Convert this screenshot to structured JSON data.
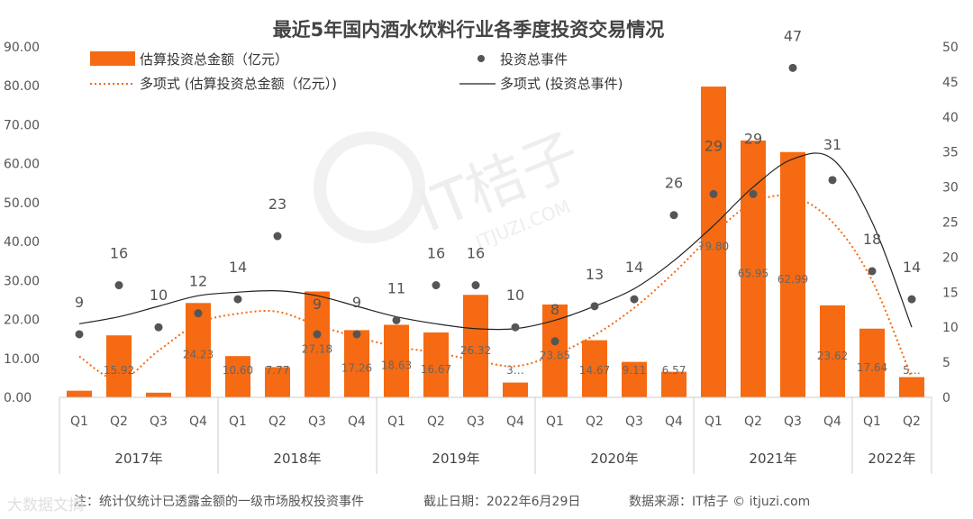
{
  "chart_data": {
    "type": "bar",
    "title": "最近5年国内酒水饮料行业各季度投资交易情况",
    "quarters": [
      "Q1",
      "Q2",
      "Q3",
      "Q4",
      "Q1",
      "Q2",
      "Q3",
      "Q4",
      "Q1",
      "Q2",
      "Q3",
      "Q4",
      "Q1",
      "Q2",
      "Q3",
      "Q4",
      "Q1",
      "Q2",
      "Q3",
      "Q4",
      "Q1",
      "Q2"
    ],
    "years": [
      "2017年",
      "2018年",
      "2019年",
      "2020年",
      "2021年",
      "2022年"
    ],
    "year_quarter_counts": [
      4,
      4,
      4,
      4,
      4,
      2
    ],
    "left_axis": {
      "ylim": [
        0,
        90
      ],
      "ticks": [
        "0.00",
        "10.00",
        "20.00",
        "30.00",
        "40.00",
        "50.00",
        "60.00",
        "70.00",
        "80.00",
        "90.00"
      ]
    },
    "right_axis": {
      "ylim": [
        0,
        50
      ],
      "ticks": [
        "0",
        "5",
        "10",
        "15",
        "20",
        "25",
        "30",
        "35",
        "40",
        "45",
        "50"
      ]
    },
    "series": [
      {
        "name": "估算投资总金额（亿元）",
        "kind": "bar",
        "color": "#F56A12",
        "values": [
          1.7,
          15.92,
          1.2,
          24.23,
          10.6,
          7.77,
          27.18,
          17.26,
          18.63,
          16.67,
          26.32,
          3.8,
          23.85,
          14.67,
          9.11,
          6.57,
          79.8,
          65.95,
          62.99,
          23.62,
          17.64,
          5.2
        ],
        "labels": [
          "",
          "15.92",
          "",
          "24.23",
          "10.60",
          "7.77",
          "27.18",
          "17.26",
          "18.63",
          "16.67",
          "26.32",
          "3…",
          "23.85",
          "14.67",
          "9.11",
          "6.57",
          "79.80",
          "65.95",
          "62.99",
          "23.62",
          "17.64",
          "5…"
        ]
      },
      {
        "name": "投资总事件",
        "kind": "scatter",
        "color": "#555555",
        "values": [
          9,
          16,
          10,
          12,
          14,
          23,
          9,
          9,
          11,
          16,
          16,
          10,
          8,
          13,
          14,
          26,
          29,
          29,
          47,
          31,
          18,
          14
        ],
        "labels": [
          "9",
          "16",
          "10",
          "12",
          "14",
          "23",
          "9",
          "9",
          "11",
          "16",
          "16",
          "10",
          "8",
          "13",
          "14",
          "26",
          "29",
          "29",
          "47",
          "31",
          "18",
          "14"
        ]
      },
      {
        "name": "多项式 (估算投资总金额（亿元）)",
        "kind": "trendline",
        "style": "dotted",
        "color": "#F56A12",
        "values": [
          10.5,
          4.5,
          12,
          19,
          21.5,
          22,
          18.5,
          15.5,
          13,
          11.5,
          9.5,
          8,
          11,
          16,
          23,
          32,
          42,
          50,
          51.5,
          45,
          30,
          5
        ]
      },
      {
        "name": "多项式 (投资总事件)",
        "kind": "trendline",
        "style": "solid",
        "color": "#222222",
        "values": [
          10.5,
          11.5,
          13,
          14.5,
          15,
          15.2,
          14.5,
          13,
          11.5,
          10.5,
          9.8,
          9.8,
          11,
          13,
          15.5,
          19.5,
          24.5,
          30,
          34,
          34,
          25,
          10
        ]
      }
    ],
    "legend_position": "top"
  },
  "footer": {
    "note": "注：统计仅统计已透露金额的一级市场股权投资事件",
    "date": "截止日期：2022年6月29日",
    "source": "数据来源：IT桔子 © itjuzi.com"
  },
  "watermark": {
    "brand": "IT桔子",
    "url": "ITJUZI.COM",
    "corner": "大数据文摘"
  }
}
